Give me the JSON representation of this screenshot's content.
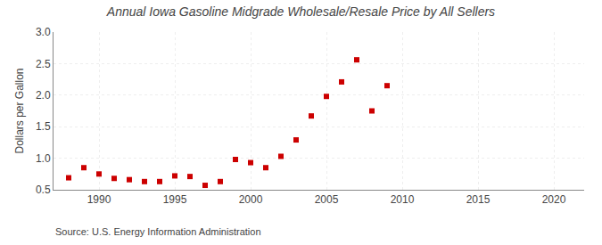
{
  "chart_data": {
    "type": "scatter",
    "title": "Annual Iowa Gasoline Midgrade Wholesale/Resale Price by All Sellers",
    "ylabel": "Dollars per Gallon",
    "annotations": [
      "Source: U.S. Energy Information Administration"
    ],
    "x": [
      1988,
      1989,
      1990,
      1991,
      1992,
      1993,
      1994,
      1995,
      1996,
      1997,
      1998,
      1999,
      2000,
      2001,
      2002,
      2003,
      2004,
      2005,
      2006,
      2007,
      2008,
      2009
    ],
    "values": [
      0.69,
      0.85,
      0.75,
      0.68,
      0.66,
      0.63,
      0.63,
      0.72,
      0.71,
      0.57,
      0.63,
      0.98,
      0.93,
      0.85,
      1.03,
      1.29,
      1.67,
      1.98,
      2.21,
      2.56,
      1.75,
      2.15
    ],
    "color": "#cc0000",
    "marker": "square",
    "xlim": [
      1987,
      2022
    ],
    "xticks": [
      1990,
      1995,
      2000,
      2005,
      2010,
      2015,
      2020
    ],
    "ylim": [
      0.5,
      3.0
    ],
    "yticks": [
      0.5,
      {
        "value": 1.0,
        "label": "1.0"
      },
      1.5,
      {
        "value": 2.0,
        "label": "2.0"
      },
      2.5,
      {
        "value": 3.0,
        "label": "3.0"
      }
    ],
    "grid": true
  }
}
